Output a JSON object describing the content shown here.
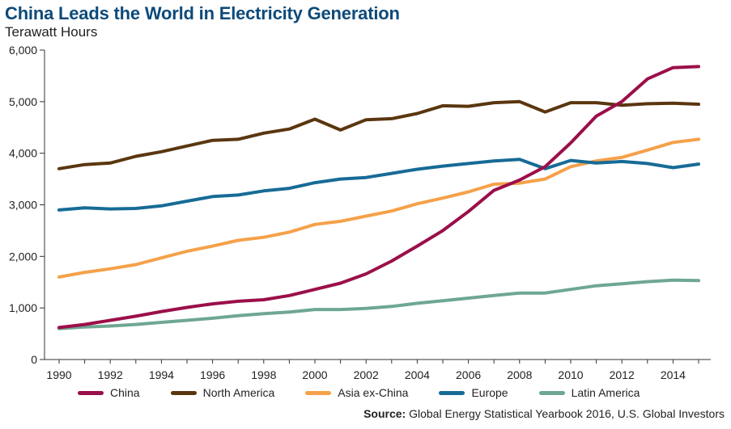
{
  "chart_data": {
    "type": "line",
    "title": "China Leads the World in Electricity Generation",
    "ylabel": "Terawatt Hours",
    "xlabel": "",
    "ylim": [
      0,
      6000
    ],
    "xlim": [
      1990,
      2015
    ],
    "yticks": [
      0,
      1000,
      2000,
      3000,
      4000,
      5000,
      6000
    ],
    "ytick_labels": [
      "0",
      "1,000",
      "2,000",
      "3,000",
      "4,000",
      "5,000",
      "6,000"
    ],
    "xticks": [
      1990,
      1992,
      1994,
      1996,
      1998,
      2000,
      2002,
      2004,
      2006,
      2008,
      2010,
      2012,
      2014
    ],
    "xtick_labels": [
      "1990",
      "1992",
      "1994",
      "1996",
      "1998",
      "2000",
      "2002",
      "2004",
      "2006",
      "2008",
      "2010",
      "2012",
      "2014"
    ],
    "grid": false,
    "legend_position": "bottom",
    "x": [
      1990,
      1991,
      1992,
      1993,
      1994,
      1995,
      1996,
      1997,
      1998,
      1999,
      2000,
      2001,
      2002,
      2003,
      2004,
      2005,
      2006,
      2007,
      2008,
      2009,
      2010,
      2011,
      2012,
      2013,
      2014,
      2015
    ],
    "series": [
      {
        "name": "China",
        "color": "#9b0f4a",
        "values": [
          620,
          680,
          760,
          840,
          930,
          1010,
          1080,
          1130,
          1160,
          1240,
          1360,
          1480,
          1660,
          1910,
          2200,
          2500,
          2870,
          3280,
          3480,
          3740,
          4200,
          4720,
          5000,
          5440,
          5660,
          5680
        ]
      },
      {
        "name": "North America",
        "color": "#5a360f",
        "values": [
          3700,
          3780,
          3810,
          3940,
          4030,
          4140,
          4250,
          4270,
          4390,
          4470,
          4660,
          4450,
          4650,
          4670,
          4770,
          4920,
          4910,
          4980,
          5000,
          4800,
          4980,
          4980,
          4930,
          4960,
          4970,
          4950
        ]
      },
      {
        "name": "Asia ex-China",
        "color": "#f5a14a",
        "values": [
          1600,
          1690,
          1760,
          1840,
          1970,
          2100,
          2200,
          2310,
          2370,
          2470,
          2620,
          2680,
          2780,
          2880,
          3020,
          3130,
          3250,
          3400,
          3420,
          3500,
          3740,
          3850,
          3920,
          4060,
          4210,
          4270
        ]
      },
      {
        "name": "Europe",
        "color": "#176b96",
        "values": [
          2900,
          2940,
          2920,
          2930,
          2980,
          3070,
          3160,
          3190,
          3270,
          3320,
          3430,
          3500,
          3530,
          3610,
          3690,
          3750,
          3800,
          3850,
          3880,
          3700,
          3860,
          3810,
          3840,
          3800,
          3720,
          3790
        ]
      },
      {
        "name": "Latin America",
        "color": "#6ea792",
        "values": [
          600,
          630,
          650,
          680,
          720,
          760,
          800,
          850,
          890,
          920,
          970,
          970,
          990,
          1030,
          1090,
          1140,
          1190,
          1240,
          1290,
          1290,
          1360,
          1430,
          1470,
          1510,
          1540,
          1530
        ]
      }
    ],
    "source_label": "Source:",
    "source_text": " Global Energy Statistical Yearbook 2016, U.S. Global Investors"
  }
}
